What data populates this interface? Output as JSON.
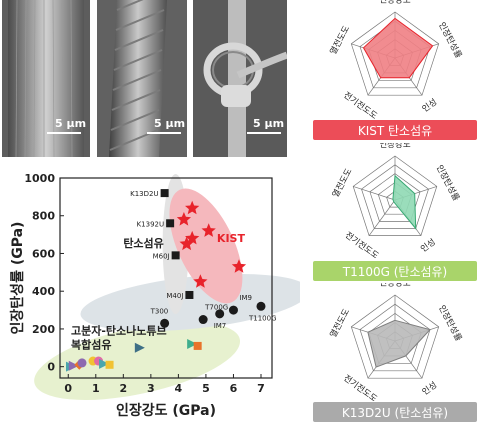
{
  "sem_images": [
    {
      "scale_label": "5 μm"
    },
    {
      "scale_label": "5 μm"
    },
    {
      "scale_label": "5 μm"
    }
  ],
  "chart_data": {
    "type": "scatter",
    "xlabel": "인장강도 (GPa)",
    "ylabel": "인장탄성률 (GPa)",
    "xlim": [
      -0.3,
      7.4
    ],
    "ylim": [
      -60,
      1000
    ],
    "xticks": [
      0,
      1,
      2,
      3,
      4,
      5,
      6,
      7
    ],
    "yticks": [
      0,
      200,
      400,
      600,
      800,
      1000
    ],
    "grid": false,
    "colors": {
      "kist": "#e8232b",
      "black": "#1b1b1b",
      "kist_region": "#f5b8bd",
      "cf_region": "#dde3e7",
      "composite_region": "#e7f1cf"
    },
    "regions": [
      {
        "label": "탄소섬유",
        "color": "#c8c8c8"
      },
      {
        "label": "KIST",
        "color": "#e8232b"
      },
      {
        "label": "고분자-탄소나노튜브\n복합섬유",
        "color": "#1b1b1b"
      }
    ],
    "series": [
      {
        "name": "KIST",
        "marker": "star",
        "color": "#e8232b",
        "points": [
          [
            4.5,
            840
          ],
          [
            4.2,
            780
          ],
          [
            4.5,
            680
          ],
          [
            4.3,
            650
          ],
          [
            5.1,
            720
          ],
          [
            4.8,
            450
          ],
          [
            6.2,
            530
          ]
        ]
      },
      {
        "name": "",
        "marker": "square",
        "color": "#1b1b1b",
        "points": [
          {
            "x": 3.5,
            "y": 920,
            "label": "K13D2U"
          },
          {
            "x": 3.7,
            "y": 760,
            "label": "K1392U"
          },
          {
            "x": 3.9,
            "y": 590,
            "label": "M60J"
          },
          {
            "x": 4.4,
            "y": 380,
            "label": "M40J"
          }
        ]
      },
      {
        "name": "",
        "marker": "circle",
        "color": "#1b1b1b",
        "points": [
          {
            "x": 3.5,
            "y": 230,
            "label": "T300"
          },
          {
            "x": 4.9,
            "y": 250,
            "label": "T700G"
          },
          {
            "x": 5.5,
            "y": 280,
            "label": "IM7"
          },
          {
            "x": 6.0,
            "y": 300,
            "label": "IM9"
          },
          {
            "x": 7.0,
            "y": 320,
            "label": "T1100G"
          }
        ]
      },
      {
        "name": "",
        "marker": "mixed",
        "points": [
          {
            "x": 0.1,
            "y": 0,
            "shape": "triangle",
            "color": "#4aa6ad"
          },
          {
            "x": 0.2,
            "y": 5,
            "shape": "triangle",
            "color": "#8d6ab0"
          },
          {
            "x": 0.4,
            "y": 10,
            "shape": "diamond",
            "color": "#e8732b"
          },
          {
            "x": 0.5,
            "y": 20,
            "shape": "circle",
            "color": "#8d6ab0"
          },
          {
            "x": 0.9,
            "y": 30,
            "shape": "circle",
            "color": "#f1c232"
          },
          {
            "x": 1.1,
            "y": 30,
            "shape": "circle",
            "color": "#e06aa5"
          },
          {
            "x": 1.3,
            "y": 15,
            "shape": "triangle",
            "color": "#4aa6ad"
          },
          {
            "x": 1.5,
            "y": 10,
            "shape": "square",
            "color": "#f1c232"
          },
          {
            "x": 2.6,
            "y": 100,
            "shape": "triangle",
            "color": "#3e6f86"
          },
          {
            "x": 4.5,
            "y": 120,
            "shape": "triangle",
            "color": "#3fae8d"
          },
          {
            "x": 4.7,
            "y": 110,
            "shape": "square",
            "color": "#e8732b"
          }
        ]
      }
    ]
  },
  "radar_charts": [
    {
      "axes": [
        "인장강도",
        "인장탄성률",
        "인성",
        "전기전도도",
        "열전도도"
      ],
      "values": [
        0.86,
        0.86,
        0.53,
        0.53,
        0.72
      ],
      "fill": "#f07f84",
      "stroke": "#e8232b",
      "banner": "KIST 탄소섬유",
      "banner_color": "#ec4d58"
    },
    {
      "axes": [
        "인장강도",
        "인장탄성률",
        "인성",
        "전기전도도",
        "열전도도"
      ],
      "values": [
        0.55,
        0.47,
        0.8,
        0.05,
        0.05
      ],
      "fill": "#8fd9b4",
      "stroke": "#38a873",
      "banner": "T1100G (탄소섬유)",
      "banner_color": "#a9d46a"
    },
    {
      "axes": [
        "인장강도",
        "인장탄성률",
        "인성",
        "전기전도도",
        "열전도도"
      ],
      "values": [
        0.45,
        0.8,
        0.4,
        0.7,
        0.62
      ],
      "fill": "#b9b9b9",
      "stroke": "#7e7e7e",
      "banner": "K13D2U (탄소섬유)",
      "banner_color": "#aaaaaa"
    }
  ]
}
